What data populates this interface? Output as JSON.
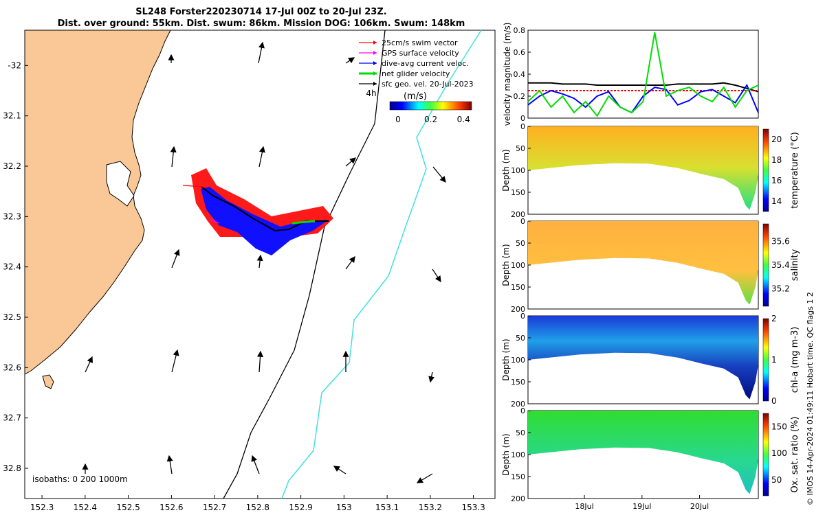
{
  "header": {
    "title_line1": "SL248 Forster220230714 17-Jul 00Z to 20-Jul 23Z.",
    "title_line2": "Dist. over ground: 55km. Dist. swum: 86km. Mission DOG: 106km. Swum: 148km"
  },
  "colors": {
    "land": "#f9c896",
    "swim_vector": "#ff0000",
    "gps_velocity": "#ff00ff",
    "dive_avg_current": "#0000ff",
    "net_glider_velocity": "#00dd00",
    "sfc_geo_velocity": "#000000",
    "isobath_200": "#000000",
    "isobath_1000": "#40e0e0"
  },
  "map": {
    "legend": [
      {
        "label": "25cm/s swim vector",
        "color": "#ff0000"
      },
      {
        "label": "GPS surface velocity",
        "color": "#ff00ff"
      },
      {
        "label": "dive-avg current veloc.",
        "color": "#0000ff"
      },
      {
        "label": "net glider velocity",
        "color": "#00dd00"
      },
      {
        "label": "sfc geo. vel. 20-Jul-2023",
        "color": "#000000"
      }
    ],
    "time_step_label": "4h",
    "colorbar_unit": "(m/s)",
    "colorbar_ticks": [
      "0",
      "0.2",
      "0.4"
    ],
    "colorbar_range": [
      0,
      0.5
    ],
    "isobath_label": "isobaths: 0   200  1000m",
    "x_ticks": [
      "152.3",
      "152.4",
      "152.5",
      "152.6",
      "152.7",
      "152.8",
      "152.9",
      "153",
      "153.1",
      "153.2",
      "153.3"
    ],
    "y_ticks": [
      "-32",
      "32.1",
      "32.2",
      "32.3",
      "32.4",
      "32.5",
      "32.6",
      "32.7",
      "32.8"
    ],
    "lon_range": [
      152.26,
      153.35
    ],
    "lat_range": [
      -31.93,
      -32.86
    ]
  },
  "chart_data": [
    {
      "type": "line",
      "title": "",
      "ylabel": "velocity magnitude (m/s)",
      "ylim": [
        0,
        0.8
      ],
      "y_ticks": [
        "0",
        "0.2",
        "0.4",
        "0.6",
        "0.8"
      ],
      "x": [
        0,
        0.2,
        0.4,
        0.6,
        0.8,
        1.0,
        1.2,
        1.4,
        1.6,
        1.8,
        2.0,
        2.2,
        2.4,
        2.6,
        2.8,
        3.0,
        3.2,
        3.4,
        3.6,
        3.8,
        4.0
      ],
      "xlim": [
        0,
        4
      ],
      "series": [
        {
          "name": "sfc geo. vel.",
          "color": "#000000",
          "values": [
            0.32,
            0.32,
            0.32,
            0.31,
            0.31,
            0.31,
            0.3,
            0.3,
            0.3,
            0.3,
            0.3,
            0.3,
            0.3,
            0.31,
            0.31,
            0.31,
            0.31,
            0.32,
            0.3,
            0.27,
            0.24
          ]
        },
        {
          "name": "swim speed",
          "color": "#ff0000",
          "values": [
            0.25,
            0.25,
            0.25,
            0.25,
            0.25,
            0.25,
            0.25,
            0.25,
            0.25,
            0.25,
            0.25,
            0.25,
            0.25,
            0.25,
            0.25,
            0.25,
            0.25,
            0.25,
            0.25,
            0.25,
            0.25
          ]
        },
        {
          "name": "dive-avg current",
          "color": "#0000ff",
          "values": [
            0.12,
            0.2,
            0.25,
            0.22,
            0.18,
            0.1,
            0.2,
            0.24,
            0.1,
            0.05,
            0.2,
            0.28,
            0.26,
            0.12,
            0.16,
            0.24,
            0.26,
            0.2,
            0.14,
            0.3,
            0.05
          ]
        },
        {
          "name": "net glider velocity",
          "color": "#00dd00",
          "values": [
            0.15,
            0.25,
            0.1,
            0.2,
            0.05,
            0.15,
            0.02,
            0.2,
            0.1,
            0.05,
            0.15,
            0.78,
            0.2,
            0.25,
            0.28,
            0.2,
            0.15,
            0.28,
            0.1,
            0.25,
            0.3
          ]
        }
      ]
    },
    {
      "type": "heatmap",
      "ylabel": "Depth (m)",
      "ylim": [
        0,
        200
      ],
      "y_ticks": [
        "0",
        "50",
        "100",
        "150",
        "200"
      ],
      "cbar_label": "temperature (°C)",
      "cbar_ticks": [
        "14",
        "16",
        "18",
        "20"
      ],
      "cbar_range": [
        13,
        21
      ]
    },
    {
      "type": "heatmap",
      "ylabel": "Depth (m)",
      "ylim": [
        0,
        200
      ],
      "y_ticks": [
        "0",
        "50",
        "100",
        "150",
        "200"
      ],
      "cbar_label": "salinity",
      "cbar_ticks": [
        "35.2",
        "35.4",
        "35.6"
      ],
      "cbar_range": [
        35.05,
        35.75
      ]
    },
    {
      "type": "heatmap",
      "ylabel": "Depth (m)",
      "ylim": [
        0,
        200
      ],
      "y_ticks": [
        "0",
        "50",
        "100",
        "150",
        "200"
      ],
      "cbar_label": "chl-a (mg m-3)",
      "cbar_ticks": [
        "0",
        "1",
        "2"
      ],
      "cbar_range": [
        0,
        2
      ]
    },
    {
      "type": "heatmap",
      "ylabel": "Depth (m)",
      "ylim": [
        0,
        200
      ],
      "y_ticks": [
        "0",
        "50",
        "100",
        "150",
        "200"
      ],
      "cbar_label": "Ox. sat. ratio (%)",
      "cbar_ticks": [
        "50",
        "100",
        "150"
      ],
      "cbar_range": [
        20,
        175
      ],
      "x_ticks": [
        "18Jul",
        "19Jul",
        "20Jul"
      ]
    }
  ],
  "footer": {
    "copyright": "© IMOS 14-Apr-2024 01:49:11 Hobart time. QC flags 1  2"
  }
}
